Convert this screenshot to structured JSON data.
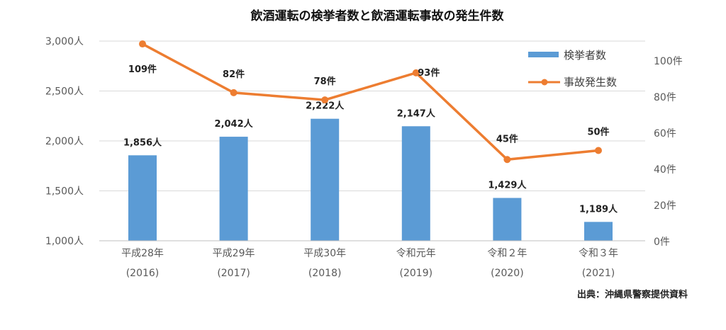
{
  "chart_data": {
    "type": "bar+line",
    "title": "飲酒運転の検挙者数と飲酒運転事故の発生件数",
    "categories": [
      [
        "平成28年",
        "(2016)"
      ],
      [
        "平成29年",
        "(2017)"
      ],
      [
        "平成30年",
        "(2018)"
      ],
      [
        "令和元年",
        "(2019)"
      ],
      [
        "令和２年",
        "(2020)"
      ],
      [
        "令和３年",
        "(2021)"
      ]
    ],
    "series": [
      {
        "name": "検挙者数",
        "type": "bar",
        "axis": "left",
        "color": "#5B9BD5",
        "values": [
          1856,
          2042,
          2222,
          2147,
          1429,
          1189
        ],
        "labels": [
          "1,856人",
          "2,042人",
          "2,222人",
          "2,147人",
          "1,429人",
          "1,189人"
        ]
      },
      {
        "name": "事故発生数",
        "type": "line",
        "axis": "right",
        "color": "#ED7D31",
        "values": [
          109,
          82,
          78,
          93,
          45,
          50
        ],
        "labels": [
          "109件",
          "82件",
          "78件",
          "93件",
          "45件",
          "50件"
        ]
      }
    ],
    "left_axis": {
      "ylim": [
        1000,
        3000
      ],
      "ticks": [
        1000,
        1500,
        2000,
        2500,
        3000
      ],
      "tick_labels": [
        "1,000人",
        "1,500人",
        "2,000人",
        "2,500人",
        "3,000人"
      ]
    },
    "right_axis": {
      "ylim": [
        0,
        110
      ],
      "ticks": [
        0,
        20,
        40,
        60,
        80,
        100
      ],
      "tick_labels": [
        "0件",
        "20件",
        "40件",
        "60件",
        "80件",
        "100件"
      ]
    },
    "grid": true,
    "legend_position": "top-right",
    "source": "出典：沖縄県警察提供資料"
  }
}
